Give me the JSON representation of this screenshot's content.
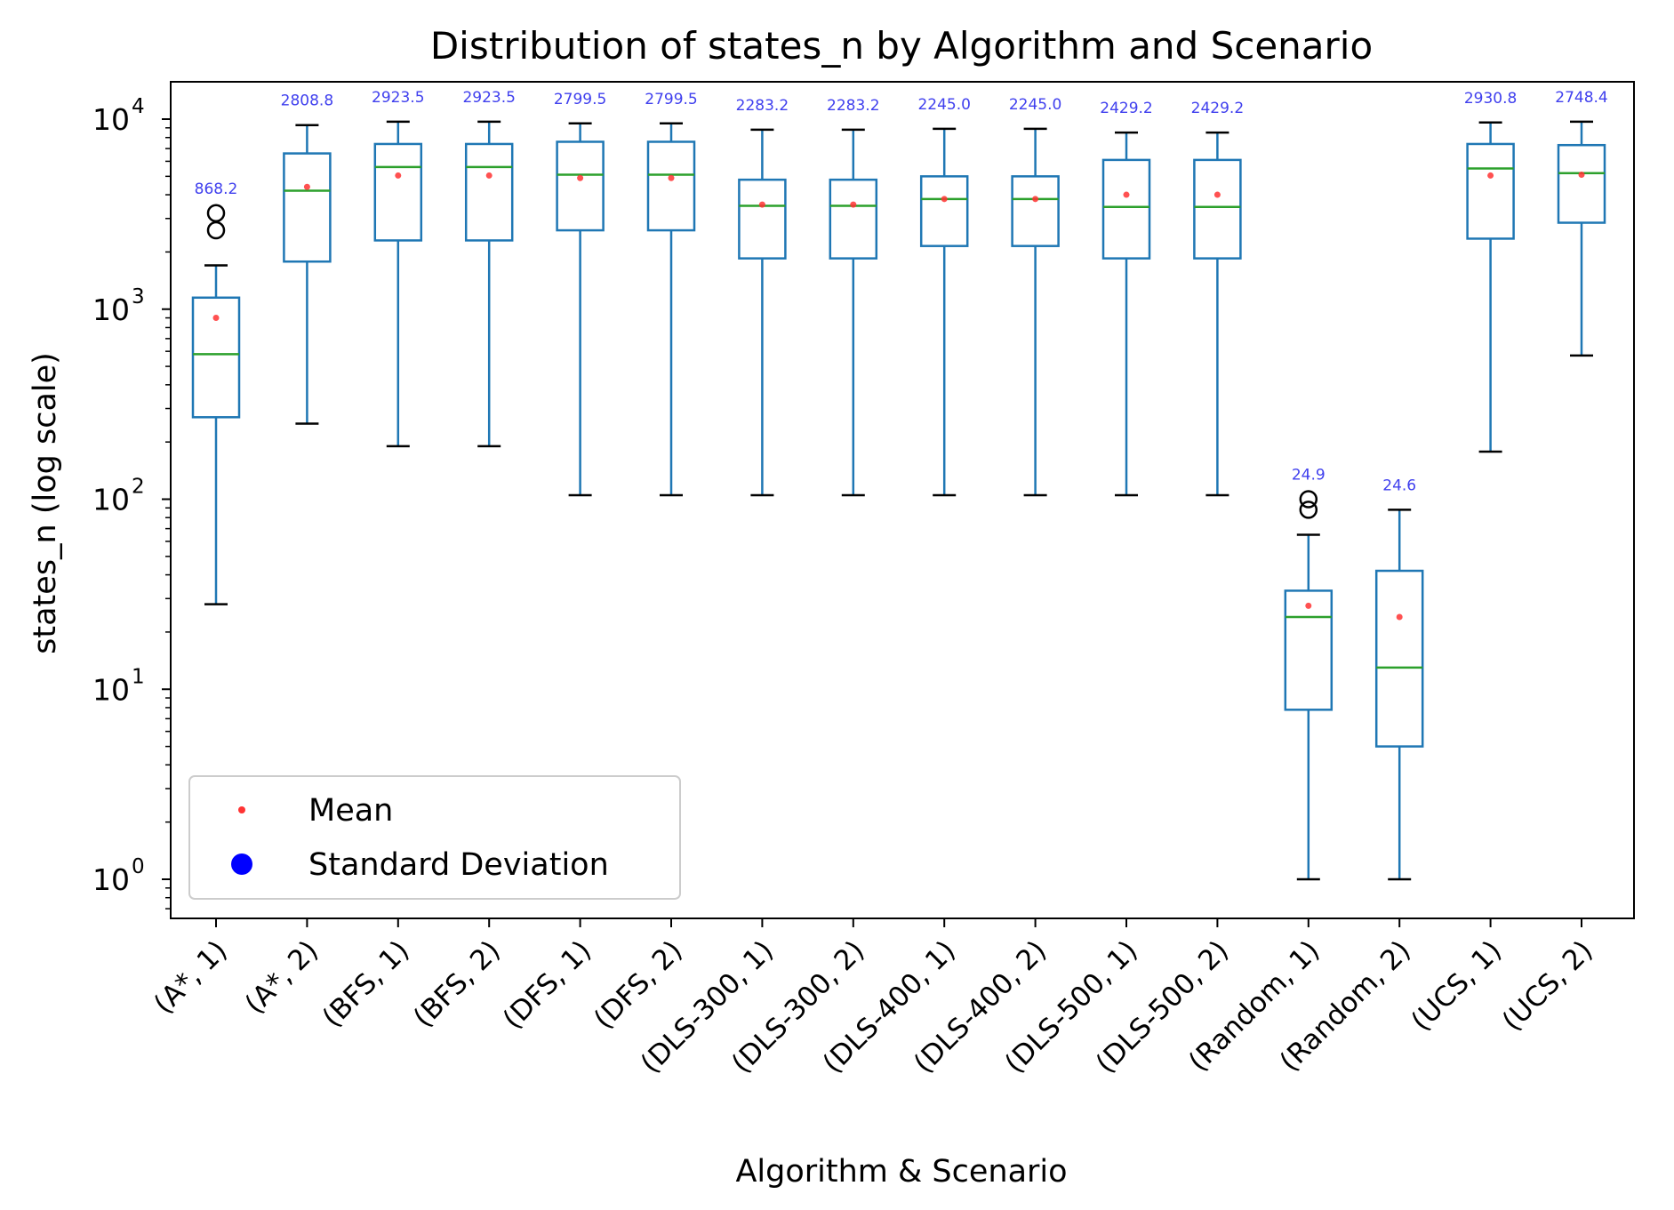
{
  "chart_data": {
    "type": "box",
    "title": "Distribution of states_n by Algorithm and Scenario",
    "xlabel": "Algorithm & Scenario",
    "ylabel": "states_n (log scale)",
    "yscale": "log",
    "ylim": [
      0.65,
      16000
    ],
    "yticks": [
      {
        "base": "10",
        "exp": "0",
        "value": 1
      },
      {
        "base": "10",
        "exp": "1",
        "value": 10
      },
      {
        "base": "10",
        "exp": "2",
        "value": 100
      },
      {
        "base": "10",
        "exp": "3",
        "value": 1000
      },
      {
        "base": "10",
        "exp": "4",
        "value": 10000
      }
    ],
    "grid": false,
    "legend_position": "lower-left",
    "legend": [
      {
        "label": "Mean",
        "marker": "small-dot",
        "color": "#ff3333"
      },
      {
        "label": "Standard Deviation",
        "marker": "large-dot",
        "color": "#0000ff"
      }
    ],
    "colors": {
      "box": "#1f77b4",
      "median": "#2ca02c",
      "mean": "#ff3333",
      "sd_label": "#4040ee",
      "whisker_cap": "#000000"
    },
    "categories": [
      "(A*, 1)",
      "(A*, 2)",
      "(BFS, 1)",
      "(BFS, 2)",
      "(DFS, 1)",
      "(DFS, 2)",
      "(DLS-300, 1)",
      "(DLS-300, 2)",
      "(DLS-400, 1)",
      "(DLS-400, 2)",
      "(DLS-500, 1)",
      "(DLS-500, 2)",
      "(Random, 1)",
      "(Random, 2)",
      "(UCS, 1)",
      "(UCS, 2)"
    ],
    "boxes": [
      {
        "whislo": 28,
        "q1": 270,
        "med": 580,
        "q3": 1150,
        "whishi": 1700,
        "mean": 900,
        "sd_label": "868.2",
        "fliers": [
          2600,
          3200
        ]
      },
      {
        "whislo": 250,
        "q1": 1780,
        "med": 4200,
        "q3": 6600,
        "whishi": 9300,
        "mean": 4400,
        "sd_label": "2808.8",
        "fliers": []
      },
      {
        "whislo": 190,
        "q1": 2300,
        "med": 5600,
        "q3": 7400,
        "whishi": 9700,
        "mean": 5050,
        "sd_label": "2923.5",
        "fliers": []
      },
      {
        "whislo": 190,
        "q1": 2300,
        "med": 5600,
        "q3": 7400,
        "whishi": 9700,
        "mean": 5050,
        "sd_label": "2923.5",
        "fliers": []
      },
      {
        "whislo": 105,
        "q1": 2600,
        "med": 5100,
        "q3": 7600,
        "whishi": 9500,
        "mean": 4900,
        "sd_label": "2799.5",
        "fliers": []
      },
      {
        "whislo": 105,
        "q1": 2600,
        "med": 5100,
        "q3": 7600,
        "whishi": 9500,
        "mean": 4900,
        "sd_label": "2799.5",
        "fliers": []
      },
      {
        "whislo": 105,
        "q1": 1850,
        "med": 3500,
        "q3": 4800,
        "whishi": 8800,
        "mean": 3550,
        "sd_label": "2283.2",
        "fliers": []
      },
      {
        "whislo": 105,
        "q1": 1850,
        "med": 3500,
        "q3": 4800,
        "whishi": 8800,
        "mean": 3550,
        "sd_label": "2283.2",
        "fliers": []
      },
      {
        "whislo": 105,
        "q1": 2150,
        "med": 3800,
        "q3": 5000,
        "whishi": 8900,
        "mean": 3800,
        "sd_label": "2245.0",
        "fliers": []
      },
      {
        "whislo": 105,
        "q1": 2150,
        "med": 3800,
        "q3": 5000,
        "whishi": 8900,
        "mean": 3800,
        "sd_label": "2245.0",
        "fliers": []
      },
      {
        "whislo": 105,
        "q1": 1850,
        "med": 3450,
        "q3": 6100,
        "whishi": 8500,
        "mean": 4000,
        "sd_label": "2429.2",
        "fliers": []
      },
      {
        "whislo": 105,
        "q1": 1850,
        "med": 3450,
        "q3": 6100,
        "whishi": 8500,
        "mean": 4000,
        "sd_label": "2429.2",
        "fliers": []
      },
      {
        "whislo": 1,
        "q1": 7.8,
        "med": 24,
        "q3": 33,
        "whishi": 65,
        "mean": 27.5,
        "sd_label": "24.9",
        "fliers": [
          88,
          100
        ]
      },
      {
        "whislo": 1,
        "q1": 5,
        "med": 13,
        "q3": 42,
        "whishi": 88,
        "mean": 24,
        "sd_label": "24.6",
        "fliers": []
      },
      {
        "whislo": 178,
        "q1": 2350,
        "med": 5500,
        "q3": 7400,
        "whishi": 9600,
        "mean": 5050,
        "sd_label": "2930.8",
        "fliers": []
      },
      {
        "whislo": 570,
        "q1": 2850,
        "med": 5200,
        "q3": 7300,
        "whishi": 9700,
        "mean": 5100,
        "sd_label": "2748.4",
        "fliers": []
      }
    ]
  }
}
